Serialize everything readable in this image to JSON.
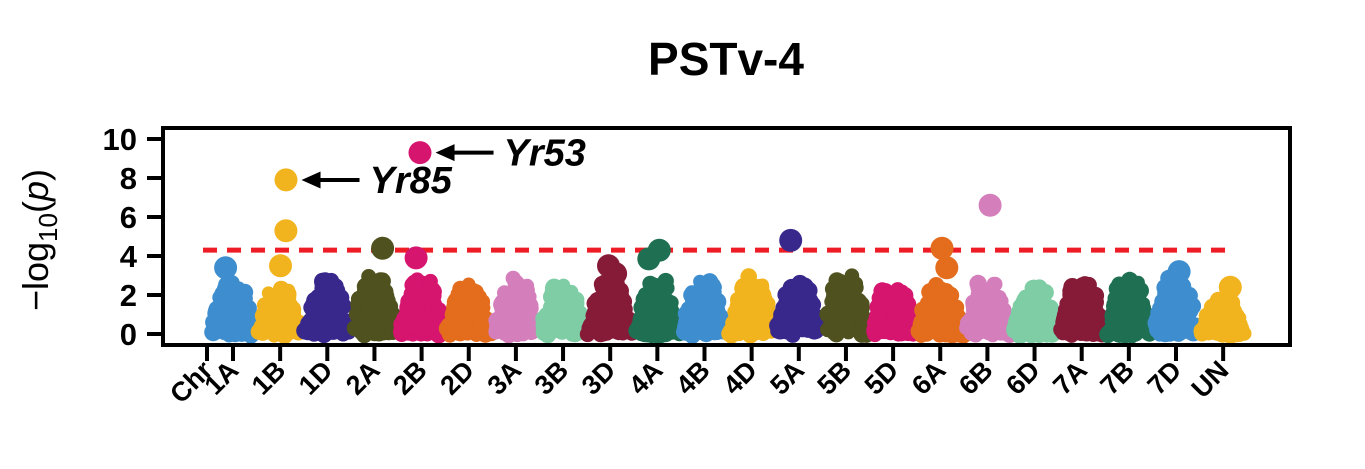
{
  "figure": {
    "background": "#ffffff",
    "axis_color": "#000000"
  },
  "chart_data": {
    "type": "scatter",
    "subtype": "manhattan",
    "title": "PSTv-4",
    "xlabel": "",
    "ylabel": "−log10(p)",
    "ylabel_parts": {
      "prefix": "−log",
      "sub": "10",
      "open": "(",
      "var": "p",
      "close": ")"
    },
    "ylim": [
      0,
      10
    ],
    "yticks": [
      0,
      2,
      4,
      6,
      8,
      10
    ],
    "grid": false,
    "legend": false,
    "x_prefix_label": "Chr",
    "threshold_line": {
      "value": 4.3,
      "color": "#ee1c25",
      "style": "dashed"
    },
    "annotations": [
      {
        "text": "Yr85",
        "chrom": "1B",
        "value": 7.9
      },
      {
        "text": "Yr53",
        "chrom": "2B",
        "value": 9.3
      }
    ],
    "chromosomes": [
      {
        "label": "1A",
        "color": "#3e8ecf",
        "bulk_max": 2.8,
        "outliers": [
          3.4
        ]
      },
      {
        "label": "1B",
        "color": "#f2b41e",
        "bulk_max": 2.6,
        "outliers": [
          3.5,
          5.3,
          7.9
        ]
      },
      {
        "label": "1D",
        "color": "#38288c",
        "bulk_max": 2.9,
        "outliers": []
      },
      {
        "label": "2A",
        "color": "#4f511f",
        "bulk_max": 3.0,
        "outliers": [
          4.4
        ]
      },
      {
        "label": "2B",
        "color": "#d6156f",
        "bulk_max": 2.9,
        "outliers": [
          3.9,
          9.3
        ]
      },
      {
        "label": "2D",
        "color": "#e36d1d",
        "bulk_max": 2.6,
        "outliers": []
      },
      {
        "label": "3A",
        "color": "#d47ebc",
        "bulk_max": 2.9,
        "outliers": []
      },
      {
        "label": "3B",
        "color": "#7ecda5",
        "bulk_max": 2.6,
        "outliers": []
      },
      {
        "label": "3D",
        "color": "#861b38",
        "bulk_max": 2.9,
        "outliers": [
          3.1,
          3.5
        ]
      },
      {
        "label": "4A",
        "color": "#1f7052",
        "bulk_max": 2.7,
        "outliers": [
          3.85,
          4.3
        ]
      },
      {
        "label": "4B",
        "color": "#3e8ecf",
        "bulk_max": 2.9,
        "outliers": []
      },
      {
        "label": "4D",
        "color": "#f2b41e",
        "bulk_max": 2.9,
        "outliers": []
      },
      {
        "label": "5A",
        "color": "#38288c",
        "bulk_max": 2.7,
        "outliers": [
          4.8
        ]
      },
      {
        "label": "5B",
        "color": "#4f511f",
        "bulk_max": 3.0,
        "outliers": []
      },
      {
        "label": "5D",
        "color": "#d6156f",
        "bulk_max": 2.5,
        "outliers": []
      },
      {
        "label": "6A",
        "color": "#e36d1d",
        "bulk_max": 2.8,
        "outliers": [
          3.4,
          4.4
        ]
      },
      {
        "label": "6B",
        "color": "#d47ebc",
        "bulk_max": 2.8,
        "outliers": [
          6.6
        ]
      },
      {
        "label": "6D",
        "color": "#7ecda5",
        "bulk_max": 2.5,
        "outliers": []
      },
      {
        "label": "7A",
        "color": "#861b38",
        "bulk_max": 2.9,
        "outliers": []
      },
      {
        "label": "7B",
        "color": "#1f7052",
        "bulk_max": 2.9,
        "outliers": []
      },
      {
        "label": "7D",
        "color": "#3e8ecf",
        "bulk_max": 3.0,
        "outliers": [
          3.2
        ]
      },
      {
        "label": "UN",
        "color": "#f2b41e",
        "bulk_max": 1.8,
        "outliers": [
          2.4
        ]
      }
    ]
  }
}
